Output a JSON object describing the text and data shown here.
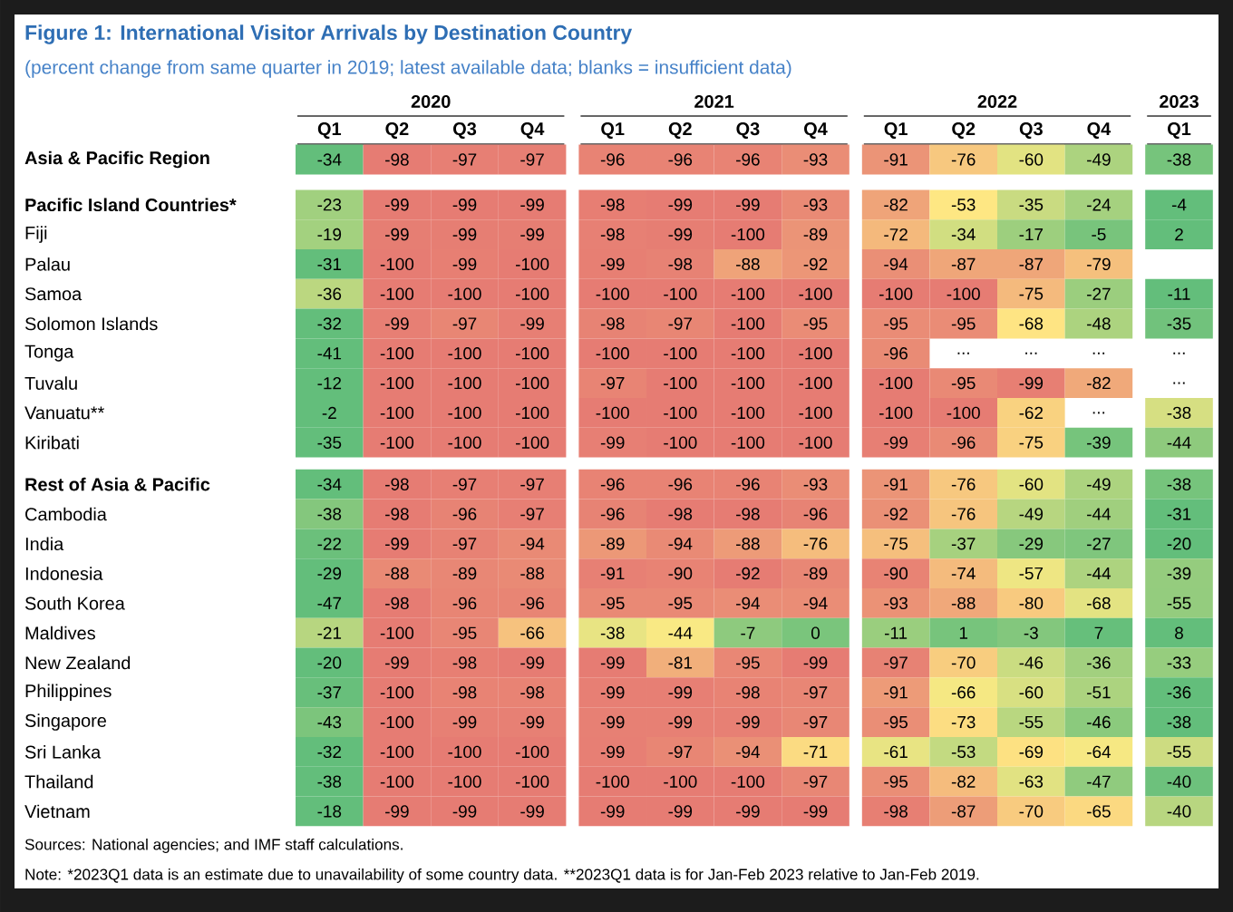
{
  "chart_data": {
    "type": "heatmap",
    "title": "Figure 1: International Visitor Arrivals by Destination Country",
    "subtitle": "(percent change from same quarter in 2019; latest available data; blanks = insufficient data)",
    "categories": [
      "Q1",
      "Q2",
      "Q3",
      "Q4",
      "Q1",
      "Q2",
      "Q3",
      "Q4",
      "Q1",
      "Q2",
      "Q3",
      "Q4",
      "Q1"
    ],
    "y_categories": [
      "Asia & Pacific Region",
      "Pacific Island Countries*",
      "Fiji",
      "Palau",
      "Samoa",
      "Solomon Islands",
      "Tonga",
      "Tuvalu",
      "Vanuatu**",
      "Kiribati",
      "Rest of Asia & Pacific",
      "Cambodia",
      "India",
      "Indonesia",
      "South Korea",
      "Maldives",
      "New Zealand",
      "Philippines",
      "Singapore",
      "Sri Lanka",
      "Thailand",
      "Vietnam"
    ],
    "cells": [
      [
        -34,
        -98,
        -97,
        -97,
        -96,
        -96,
        -96,
        -93,
        -91,
        -76,
        -60,
        -49,
        -38
      ],
      [
        -23,
        -99,
        -99,
        -99,
        -98,
        -99,
        -99,
        -93,
        -82,
        -53,
        -35,
        -24,
        -4
      ],
      [
        -19,
        -99,
        -99,
        -99,
        -98,
        -99,
        -100,
        -89,
        -72,
        -34,
        -17,
        -5,
        2
      ],
      [
        -31,
        -100,
        -99,
        -100,
        -99,
        -98,
        -88,
        -92,
        -94,
        -87,
        -87,
        -79,
        null
      ],
      [
        -36,
        -100,
        -100,
        -100,
        -100,
        -100,
        -100,
        -100,
        -100,
        -100,
        -75,
        -27,
        -11
      ],
      [
        -32,
        -99,
        -97,
        -99,
        -98,
        -97,
        -100,
        -95,
        -95,
        -95,
        -68,
        -48,
        -35
      ],
      [
        -41,
        -100,
        -100,
        -100,
        -100,
        -100,
        -100,
        -100,
        -96,
        null,
        null,
        null,
        null
      ],
      [
        -12,
        -100,
        -100,
        -100,
        -97,
        -100,
        -100,
        -100,
        -100,
        -95,
        -99,
        -82,
        null
      ],
      [
        -2,
        -100,
        -100,
        -100,
        -100,
        -100,
        -100,
        -100,
        -100,
        -100,
        -62,
        null,
        -38
      ],
      [
        -35,
        -100,
        -100,
        -100,
        -99,
        -100,
        -100,
        -100,
        -99,
        -96,
        -75,
        -39,
        -44
      ],
      [
        -34,
        -98,
        -97,
        -97,
        -96,
        -96,
        -96,
        -93,
        -91,
        -76,
        -60,
        -49,
        -38
      ],
      [
        -38,
        -98,
        -96,
        -97,
        -96,
        -98,
        -98,
        -96,
        -92,
        -76,
        -49,
        -44,
        -31
      ],
      [
        -22,
        -99,
        -97,
        -94,
        -89,
        -94,
        -88,
        -76,
        -75,
        -37,
        -29,
        -27,
        -20
      ],
      [
        -29,
        -88,
        -89,
        -88,
        -91,
        -90,
        -92,
        -89,
        -90,
        -74,
        -57,
        -44,
        -39
      ],
      [
        -47,
        -98,
        -96,
        -96,
        -95,
        -95,
        -94,
        -94,
        -93,
        -88,
        -80,
        -68,
        -55
      ],
      [
        -21,
        -100,
        -95,
        -66,
        -38,
        -44,
        -7,
        0,
        -11,
        1,
        -3,
        7,
        8
      ],
      [
        -20,
        -99,
        -98,
        -99,
        -99,
        -81,
        -95,
        -99,
        -97,
        -70,
        -46,
        -36,
        -33
      ],
      [
        -37,
        -100,
        -98,
        -98,
        -99,
        -99,
        -98,
        -97,
        -91,
        -66,
        -60,
        -51,
        -36
      ],
      [
        -43,
        -100,
        -99,
        -99,
        -99,
        -99,
        -99,
        -97,
        -95,
        -73,
        -55,
        -46,
        -38
      ],
      [
        -32,
        -100,
        -100,
        -100,
        -99,
        -97,
        -94,
        -71,
        -61,
        -53,
        -69,
        -64,
        -55
      ],
      [
        -38,
        -100,
        -100,
        -100,
        -100,
        -100,
        -100,
        -97,
        -95,
        -82,
        -63,
        -47,
        -40
      ],
      [
        -18,
        -99,
        -99,
        -99,
        -99,
        -99,
        -99,
        -99,
        -98,
        -87,
        -70,
        -65,
        -40
      ]
    ],
    "cell_labels": [
      [
        "-34",
        "-98",
        "-97",
        "-97",
        "-96",
        "-96",
        "-96",
        "-93",
        "-91",
        "-76",
        "-60",
        "-49",
        "-38"
      ],
      [
        "-23",
        "-99",
        "-99",
        "-99",
        "-98",
        "-99",
        "-99",
        "-93",
        "-82",
        "-53",
        "-35",
        "-24",
        "-4"
      ],
      [
        "-19",
        "-99",
        "-99",
        "-99",
        "-98",
        "-99",
        "-100",
        "-89",
        "-72",
        "-34",
        "-17",
        "-5",
        "2"
      ],
      [
        "-31",
        "-100",
        "-99",
        "-100",
        "-99",
        "-98",
        "-88",
        "-92",
        "-94",
        "-87",
        "-87",
        "-79",
        null
      ],
      [
        "-36",
        "-100",
        "-100",
        "-100",
        "-100",
        "-100",
        "-100",
        "-100",
        "-100",
        "-100",
        "-75",
        "-27",
        "-11"
      ],
      [
        "-32",
        "-99",
        "-97",
        "-99",
        "-98",
        "-97",
        "-100",
        "-95",
        "-95",
        "-95",
        "-68",
        "-48",
        "-35"
      ],
      [
        "-41",
        "-100",
        "-100",
        "-100",
        "-100",
        "-100",
        "-100",
        "-100",
        "-96",
        "...",
        "...",
        "...",
        "..."
      ],
      [
        "-12",
        "-100",
        "-100",
        "-100",
        "-97",
        "-100",
        "-100",
        "-100",
        "-100",
        "-95",
        "-99",
        "-82",
        "..."
      ],
      [
        "-2",
        "-100",
        "-100",
        "-100",
        "-100",
        "-100",
        "-100",
        "-100",
        "-100",
        "-100",
        "-62",
        "...",
        "-38"
      ],
      [
        "-35",
        "-100",
        "-100",
        "-100",
        "-99",
        "-100",
        "-100",
        "-100",
        "-99",
        "-96",
        "-75",
        "-39",
        "-44"
      ],
      [
        "-34",
        "-98",
        "-97",
        "-97",
        "-96",
        "-96",
        "-96",
        "-93",
        "-91",
        "-76",
        "-60",
        "-49",
        "-38"
      ],
      [
        "-38",
        "-98",
        "-96",
        "-97",
        "-96",
        "-98",
        "-98",
        "-96",
        "-92",
        "-76",
        "-49",
        "-44",
        "-31"
      ],
      [
        "-22",
        "-99",
        "-97",
        "-94",
        "-89",
        "-94",
        "-88",
        "-76",
        "-75",
        "-37",
        "-29",
        "-27",
        "-20"
      ],
      [
        "-29",
        "-88",
        "-89",
        "-88",
        "-91",
        "-90",
        "-92",
        "-89",
        "-90",
        "-74",
        "-57",
        "-44",
        "-39"
      ],
      [
        "-47",
        "-98",
        "-96",
        "-96",
        "-95",
        "-95",
        "-94",
        "-94",
        "-93",
        "-88",
        "-80",
        "-68",
        "-55"
      ],
      [
        "-21",
        "-100",
        "-95",
        "-66",
        "-38",
        "-44",
        "-7",
        "0",
        "-11",
        "1",
        "-3",
        "7",
        "8"
      ],
      [
        "-20",
        "-99",
        "-98",
        "-99",
        "-99",
        "-81",
        "-95",
        "-99",
        "-97",
        "-70",
        "-46",
        "-36",
        "-33"
      ],
      [
        "-37",
        "-100",
        "-98",
        "-98",
        "-99",
        "-99",
        "-98",
        "-97",
        "-91",
        "-66",
        "-60",
        "-51",
        "-36"
      ],
      [
        "-43",
        "-100",
        "-99",
        "-99",
        "-99",
        "-99",
        "-99",
        "-97",
        "-95",
        "-73",
        "-55",
        "-46",
        "-38"
      ],
      [
        "-32",
        "-100",
        "-100",
        "-100",
        "-99",
        "-97",
        "-94",
        "-71",
        "-61",
        "-53",
        "-69",
        "-64",
        "-55"
      ],
      [
        "-38",
        "-100",
        "-100",
        "-100",
        "-100",
        "-100",
        "-100",
        "-97",
        "-95",
        "-82",
        "-63",
        "-47",
        "-40"
      ],
      [
        "-18",
        "-99",
        "-99",
        "-99",
        "-99",
        "-99",
        "-99",
        "-99",
        "-98",
        "-87",
        "-70",
        "-65",
        "-40"
      ]
    ],
    "annotations": [
      "2020",
      "2021",
      "2022",
      "2023",
      "Sources: National agencies; and IMF staff calculations.",
      "Note: *2023Q1 data is an estimate due to unavailability of some country data. **2023Q1 data is for Jan-Feb 2023 relative to Jan-Feb 2019."
    ]
  }
}
